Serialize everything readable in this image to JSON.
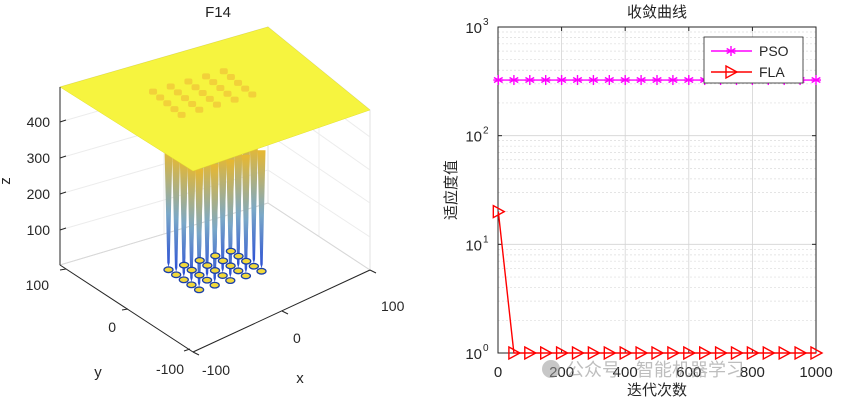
{
  "surface_plot": {
    "title": "F14",
    "xlabel": "x",
    "ylabel": "y",
    "zlabel": "z",
    "x_ticks": [
      "-100",
      "0",
      "100"
    ],
    "y_ticks": [
      "-100",
      "0",
      "100"
    ],
    "z_ticks": [
      "100",
      "200",
      "300",
      "400"
    ],
    "colors": {
      "top": "#f5f542",
      "side": "#f0c63a",
      "spike_bottom": "#3a5cd6",
      "dot_fill": "#f2d93a",
      "dot_edge": "#1a3fa8"
    }
  },
  "chart_data": {
    "type": "line",
    "title": "收敛曲线",
    "xlabel": "迭代次数",
    "ylabel": "适应度值",
    "xlim": [
      0,
      1000
    ],
    "ylim": [
      1,
      1000
    ],
    "yscale": "log",
    "x_ticks": [
      "0",
      "200",
      "400",
      "600",
      "800",
      "1000"
    ],
    "y_ticks": [
      {
        "base": "10",
        "exp": "0",
        "value": 1
      },
      {
        "base": "10",
        "exp": "1",
        "value": 10
      },
      {
        "base": "10",
        "exp": "2",
        "value": 100
      },
      {
        "base": "10",
        "exp": "3",
        "value": 1000
      }
    ],
    "grid": true,
    "legend_position": "top-right",
    "series": [
      {
        "name": "PSO",
        "color": "#ff00ff",
        "marker": "asterisk",
        "x": [
          1,
          50,
          100,
          150,
          200,
          250,
          300,
          350,
          400,
          450,
          500,
          550,
          600,
          650,
          700,
          750,
          800,
          850,
          900,
          950,
          1000
        ],
        "y": [
          325,
          325,
          325,
          325,
          325,
          325,
          325,
          325,
          325,
          325,
          325,
          325,
          325,
          325,
          325,
          325,
          325,
          325,
          325,
          325,
          325
        ]
      },
      {
        "name": "FLA",
        "color": "#ff0000",
        "marker": "triangle-right",
        "x": [
          1,
          50,
          100,
          150,
          200,
          250,
          300,
          350,
          400,
          450,
          500,
          550,
          600,
          650,
          700,
          750,
          800,
          850,
          900,
          950,
          1000
        ],
        "y": [
          20,
          1,
          1,
          1,
          1,
          1,
          1,
          1,
          1,
          1,
          1,
          1,
          1,
          1,
          1,
          1,
          1,
          1,
          1,
          1,
          1
        ]
      }
    ]
  },
  "watermark": {
    "text": "公众号 · 智能机器学习"
  }
}
